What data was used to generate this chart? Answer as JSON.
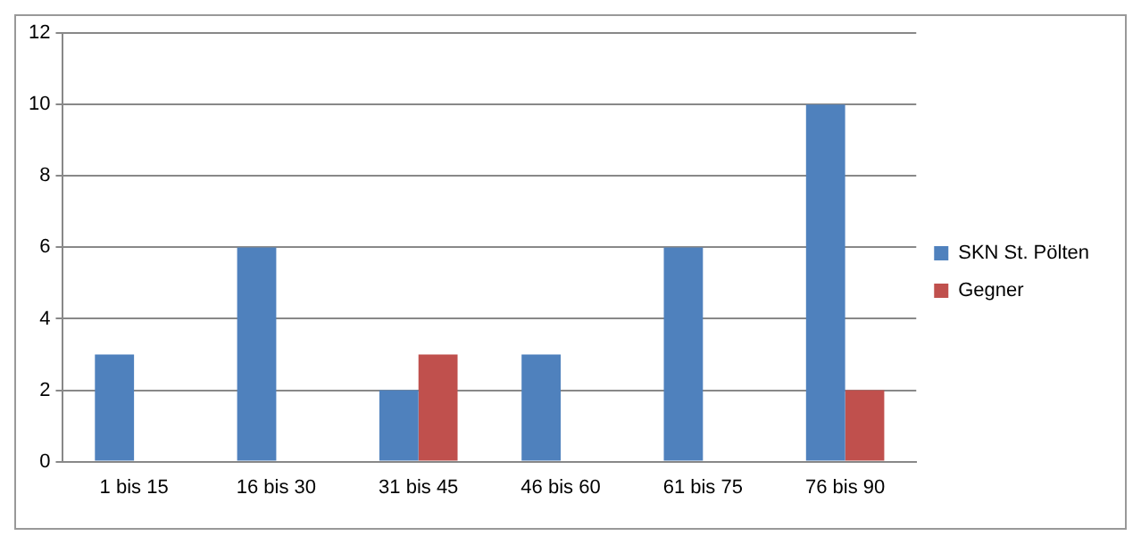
{
  "chart_data": {
    "type": "bar",
    "categories": [
      "1 bis 15",
      "16 bis 30",
      "31 bis 45",
      "46 bis 60",
      "61 bis 75",
      "76 bis 90"
    ],
    "series": [
      {
        "name": "SKN St. Pölten",
        "color": "#4f81bd",
        "values": [
          3,
          6,
          2,
          3,
          6,
          10
        ]
      },
      {
        "name": "Gegner",
        "color": "#c0504d",
        "values": [
          0,
          0,
          3,
          0,
          0,
          2
        ]
      }
    ],
    "ylim": [
      0,
      12
    ],
    "yticks": [
      0,
      2,
      4,
      6,
      8,
      10,
      12
    ],
    "grid": "y",
    "legend": "right"
  }
}
